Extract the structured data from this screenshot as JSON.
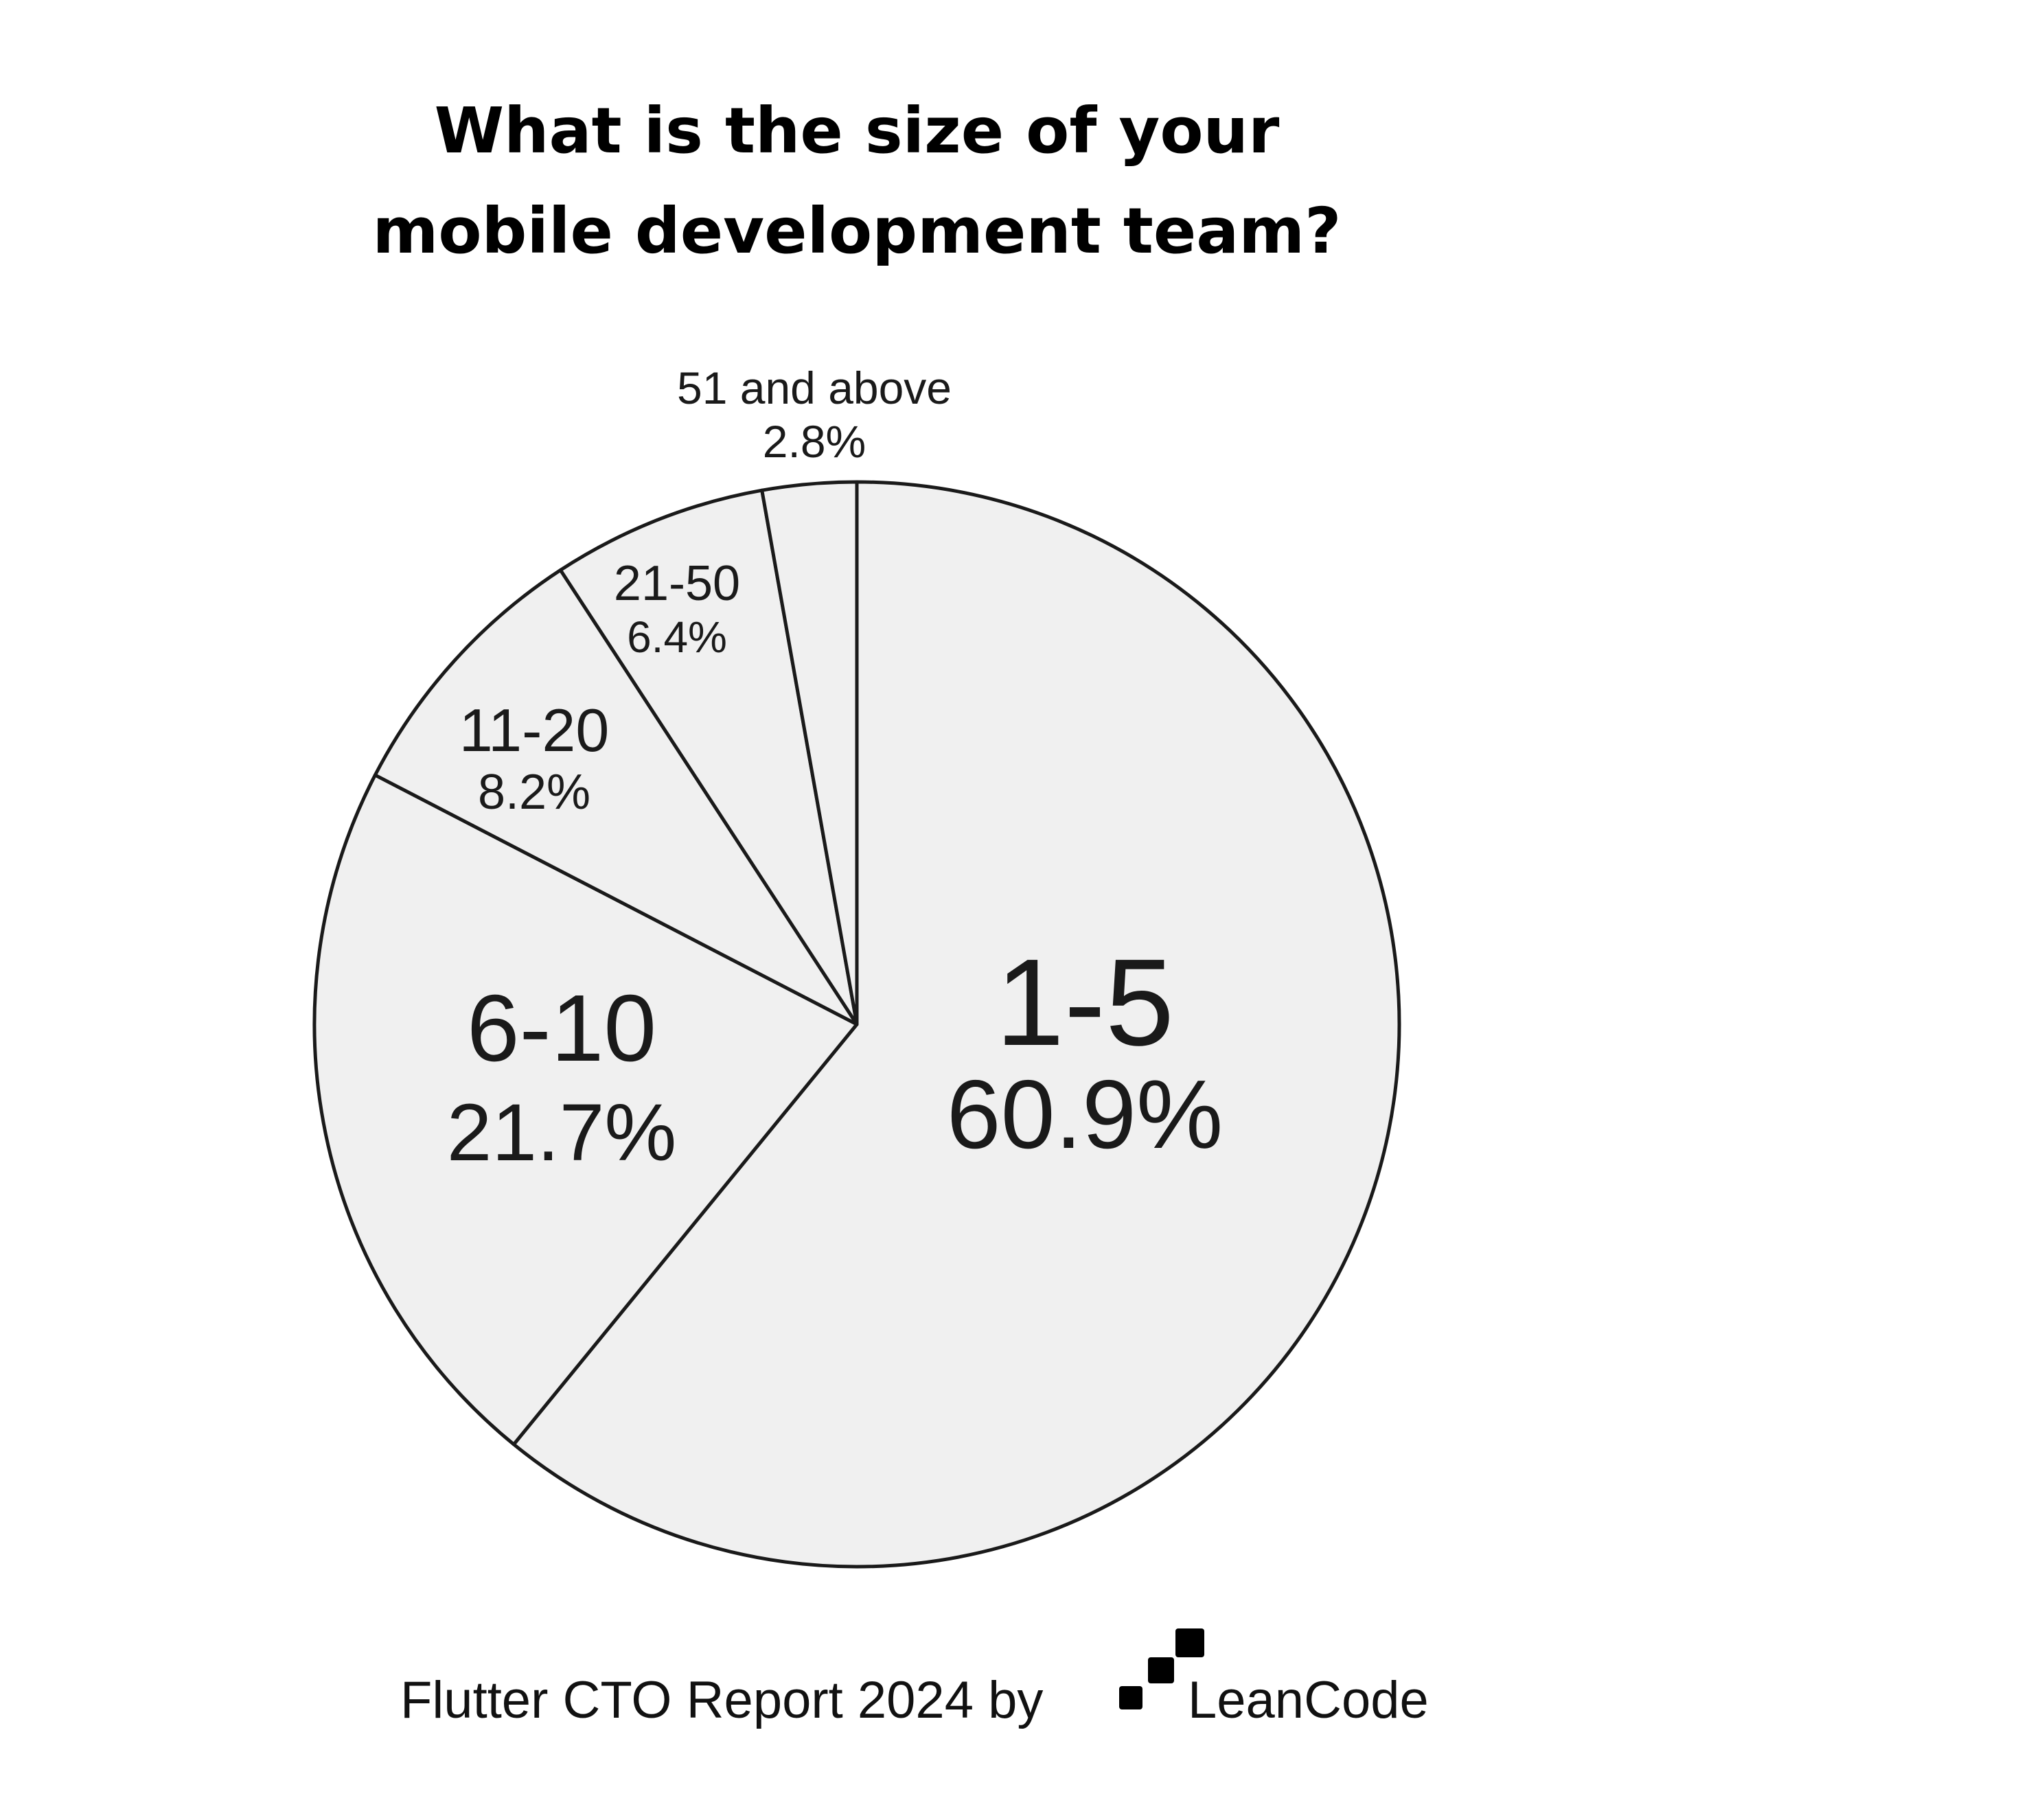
{
  "chart_data": {
    "type": "pie",
    "title": "What is the size of your mobile development team?",
    "title_lines": [
      "What is the size of your",
      "mobile development team?"
    ],
    "slices": [
      {
        "label": "1-5",
        "value": 60.9,
        "value_label": "60.9%"
      },
      {
        "label": "6-10",
        "value": 21.7,
        "value_label": "21.7%"
      },
      {
        "label": "11-20",
        "value": 8.2,
        "value_label": "8.2%"
      },
      {
        "label": "21-50",
        "value": 6.4,
        "value_label": "6.4%"
      },
      {
        "label": "51 and above",
        "value": 2.8,
        "value_label": "2.8%"
      }
    ],
    "start": "12 o'clock",
    "direction": "clockwise",
    "legend": "none"
  },
  "colors": {
    "slice_fill": "#f0f0f0",
    "slice_stroke": "#1a1a1a",
    "text": "#1a1a1a"
  },
  "footer": {
    "text": "Flutter CTO Report 2024 by",
    "brand": "LeanCode",
    "logo_icon": "leancode-logo-icon"
  }
}
